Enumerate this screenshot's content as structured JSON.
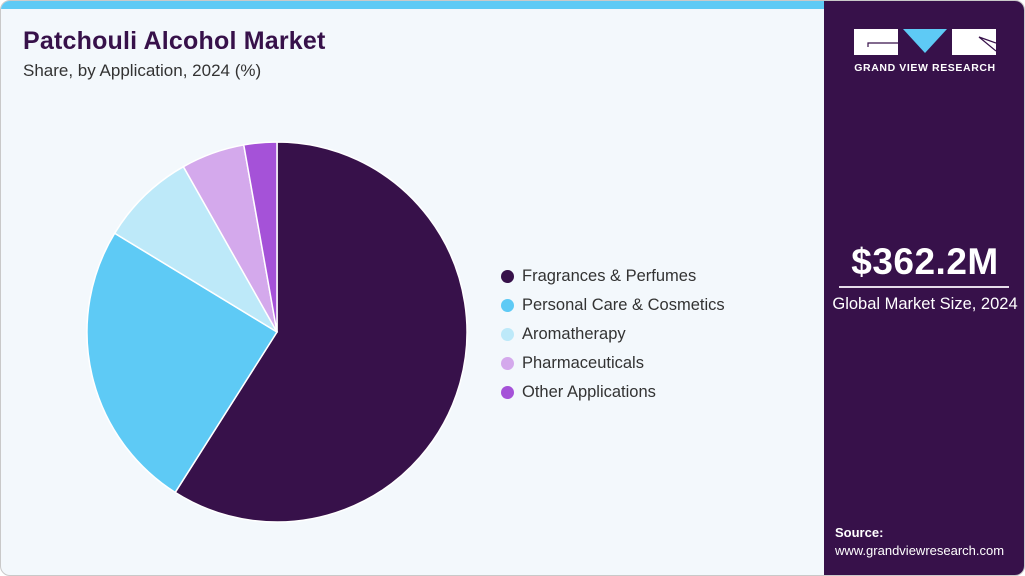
{
  "header": {
    "title": "Patchouli Alcohol Market",
    "subtitle": "Share, by Application, 2024 (%)"
  },
  "sidebar": {
    "brand": "GRAND VIEW RESEARCH",
    "market_value": "$362.2M",
    "market_label": "Global Market Size, 2024",
    "source_title": "Source:",
    "source_url": "www.grandviewresearch.com"
  },
  "colors": {
    "brand_dark": "#37114a",
    "accent_cyan": "#5ecaf5",
    "background": "#f3f8fc"
  },
  "chart_data": {
    "type": "pie",
    "title": "Patchouli Alcohol Market",
    "subtitle": "Share, by Application, 2024 (%)",
    "categories": [
      "Fragrances & Perfumes",
      "Personal Care & Cosmetics",
      "Aromatherapy",
      "Pharmaceuticals",
      "Other Applications"
    ],
    "values": [
      59.0,
      24.7,
      8.1,
      5.4,
      2.8
    ],
    "colors": [
      "#37114a",
      "#5ecaf5",
      "#bde9f9",
      "#d4a9ec",
      "#a552d8"
    ],
    "start_angle": "12 o'clock",
    "direction": "clockwise",
    "legend_position": "right",
    "units": "%"
  },
  "legend": {
    "items": [
      {
        "label": "Fragrances & Perfumes",
        "color": "#37114a"
      },
      {
        "label": "Personal Care & Cosmetics",
        "color": "#5ecaf5"
      },
      {
        "label": "Aromatherapy",
        "color": "#bde9f9"
      },
      {
        "label": "Pharmaceuticals",
        "color": "#d4a9ec"
      },
      {
        "label": "Other Applications",
        "color": "#a552d8"
      }
    ]
  }
}
